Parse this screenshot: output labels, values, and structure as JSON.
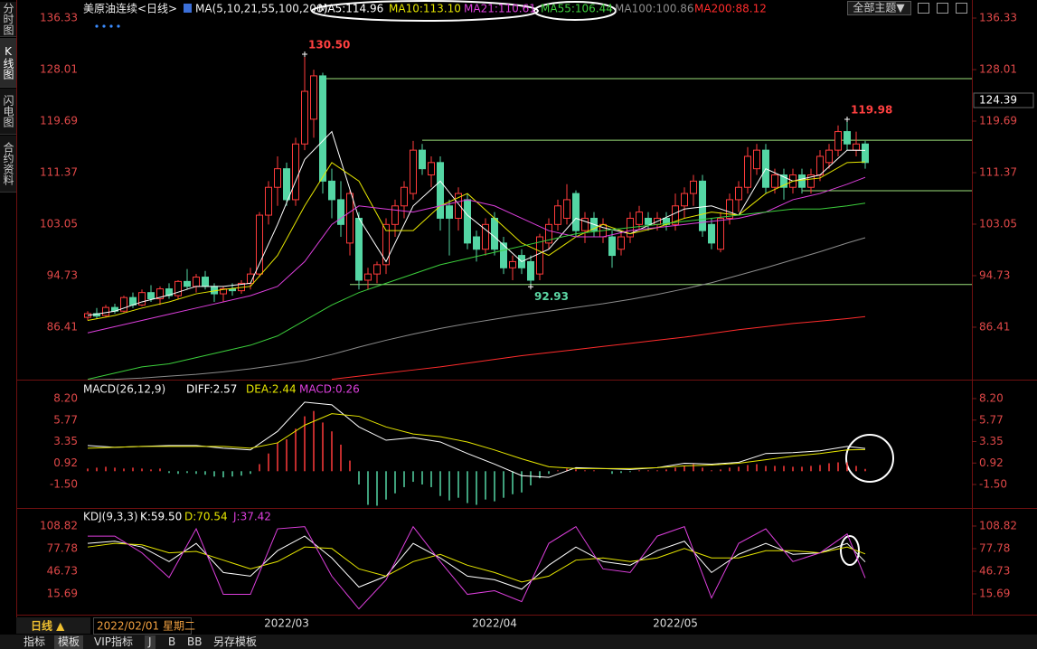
{
  "sidebar": [
    "分时图",
    "K线图",
    "闪电图",
    "合约资料"
  ],
  "toolbar": {
    "theme": "全部主题▼"
  },
  "line_x": [
    0,
    3,
    6,
    9,
    12,
    15,
    18,
    21,
    24,
    27,
    30,
    33,
    36,
    39,
    42,
    45,
    48,
    51,
    54,
    57,
    60,
    63,
    66,
    69,
    72,
    75,
    78,
    81,
    84,
    86
  ],
  "chart_data": [
    {
      "type": "candlestick",
      "title": "美原油连续<日线>",
      "indicator": "MA(5,10,21,55,100,200)",
      "up_color": "#ff3b3b",
      "down_color": "#54d6a4",
      "ylim": [
        77.94,
        136.33
      ],
      "yticks": [
        136.33,
        128.01,
        119.69,
        111.37,
        103.05,
        94.73,
        86.41
      ],
      "candles": [
        [
          88,
          89,
          87.5,
          88.6
        ],
        [
          88.6,
          89.5,
          87.8,
          88.2
        ],
        [
          88.3,
          90,
          88,
          89.6
        ],
        [
          89.6,
          90.2,
          88.6,
          89
        ],
        [
          89,
          91.5,
          88.8,
          91.2
        ],
        [
          91.2,
          92,
          89.5,
          90
        ],
        [
          90,
          92.5,
          89.8,
          92
        ],
        [
          92,
          93.2,
          90.5,
          91
        ],
        [
          91,
          93,
          90,
          92.6
        ],
        [
          92.6,
          93.5,
          91,
          91.5
        ],
        [
          91.5,
          94,
          91,
          93.8
        ],
        [
          93.8,
          95.8,
          92.5,
          93
        ],
        [
          93,
          95,
          92,
          94.5
        ],
        [
          94.5,
          95.5,
          92.5,
          93
        ],
        [
          93,
          93.5,
          90.5,
          91.8
        ],
        [
          91.8,
          93,
          90.5,
          92.6
        ],
        [
          92.6,
          93.5,
          91.5,
          92.3
        ],
        [
          92.3,
          94,
          91.8,
          93.5
        ],
        [
          93.5,
          96,
          92.5,
          95
        ],
        [
          95,
          105,
          94.5,
          104.5
        ],
        [
          104.5,
          110,
          103,
          109
        ],
        [
          109,
          114,
          106,
          112
        ],
        [
          112,
          113,
          106,
          107
        ],
        [
          107,
          117,
          106,
          116
        ],
        [
          116,
          130.5,
          115,
          124.5
        ],
        [
          120,
          128,
          117,
          127
        ],
        [
          127,
          127.5,
          108,
          110
        ],
        [
          110,
          112,
          104,
          107
        ],
        [
          107,
          110,
          101,
          103
        ],
        [
          100,
          108.5,
          98,
          108
        ],
        [
          104,
          105,
          92.5,
          94
        ],
        [
          94,
          96,
          92.5,
          95
        ],
        [
          95,
          97,
          93.5,
          96.5
        ],
        [
          96.5,
          104,
          95,
          103
        ],
        [
          103,
          107,
          101,
          106
        ],
        [
          106,
          110,
          104,
          109
        ],
        [
          108,
          116.5,
          107,
          115
        ],
        [
          115,
          116,
          111,
          112
        ],
        [
          111,
          114,
          109,
          113
        ],
        [
          113,
          114,
          102,
          104
        ],
        [
          106,
          107,
          98,
          104
        ],
        [
          104,
          109,
          102,
          108
        ],
        [
          107,
          108,
          99,
          100
        ],
        [
          101,
          102,
          97,
          99
        ],
        [
          99,
          104,
          98,
          103
        ],
        [
          104,
          105,
          98,
          99
        ],
        [
          100,
          101,
          95,
          96
        ],
        [
          96,
          98,
          94,
          97
        ],
        [
          98,
          99,
          95,
          96
        ],
        [
          97,
          98,
          92.93,
          94
        ],
        [
          95,
          101.5,
          94,
          101
        ],
        [
          100,
          104,
          99,
          103
        ],
        [
          103,
          107,
          102,
          106
        ],
        [
          104,
          109.5,
          103,
          107
        ],
        [
          108,
          108.5,
          101,
          102
        ],
        [
          102,
          105,
          100,
          104
        ],
        [
          104,
          105,
          101,
          102
        ],
        [
          101,
          104,
          100,
          103
        ],
        [
          101,
          102,
          96,
          98
        ],
        [
          99,
          102,
          98,
          101
        ],
        [
          101,
          105,
          100,
          104
        ],
        [
          103,
          106,
          102,
          105
        ],
        [
          104,
          105,
          102,
          103
        ],
        [
          103,
          105,
          102,
          104
        ],
        [
          104,
          105,
          102,
          103
        ],
        [
          103,
          108,
          102,
          106
        ],
        [
          106,
          109,
          104,
          108
        ],
        [
          108,
          111,
          106,
          110
        ],
        [
          110,
          111,
          101,
          102
        ],
        [
          103,
          104,
          99,
          100
        ],
        [
          99,
          105,
          98.5,
          104
        ],
        [
          104,
          108,
          103,
          107
        ],
        [
          107,
          110,
          105,
          109
        ],
        [
          109,
          115.5,
          108,
          114
        ],
        [
          112,
          116,
          111,
          115
        ],
        [
          115,
          116,
          108,
          109
        ],
        [
          109,
          112,
          108,
          111
        ],
        [
          111,
          112,
          107,
          109
        ],
        [
          109,
          112,
          108,
          111
        ],
        [
          111,
          112,
          108,
          109
        ],
        [
          109,
          112,
          108,
          111
        ],
        [
          111,
          115,
          110,
          114
        ],
        [
          113,
          116,
          112,
          115
        ],
        [
          115,
          119,
          114,
          118
        ],
        [
          118,
          119.98,
          115,
          116
        ],
        [
          115,
          118,
          114,
          116
        ],
        [
          116,
          116.5,
          112,
          113
        ]
      ],
      "series": [
        {
          "name": "MA5:114.96",
          "color": "#ffffff",
          "values": [
            88.3,
            89,
            90.5,
            91.6,
            93,
            93,
            93.5,
            103,
            113.5,
            118,
            104,
            97,
            106,
            110,
            104.5,
            101,
            97,
            99,
            104,
            102.5,
            101.5,
            103.5,
            105.5,
            106,
            104.5,
            112,
            110,
            111,
            115,
            114.96
          ]
        },
        {
          "name": "MA10:113.10",
          "color": "#e6e600",
          "values": [
            87.5,
            88.3,
            89.5,
            90.5,
            91.8,
            92.5,
            93,
            98,
            106,
            113,
            110,
            102,
            102,
            106,
            108,
            104,
            100,
            98,
            101,
            103,
            101.5,
            102.5,
            104,
            105,
            104.5,
            108,
            110,
            110.5,
            113,
            113.1
          ]
        },
        {
          "name": "MA21:110.61",
          "color": "#dd3fdd",
          "values": [
            85.5,
            86.5,
            87.5,
            88.5,
            89.5,
            90.5,
            91.5,
            93,
            97,
            103,
            106,
            105.5,
            105,
            106,
            107,
            106,
            104,
            102,
            101,
            101,
            102,
            102.5,
            103,
            103.5,
            104,
            105,
            107,
            108,
            109.5,
            110.61
          ]
        },
        {
          "name": "MA55:106.44",
          "color": "#3ccf3c",
          "values": [
            78,
            79,
            80,
            80.5,
            81.5,
            82.5,
            83.5,
            85,
            87.5,
            90,
            92,
            93.5,
            95,
            96.5,
            97.5,
            98.5,
            99.5,
            100.5,
            101.5,
            102,
            102.5,
            103,
            103.5,
            104,
            104.5,
            105,
            105.5,
            105.5,
            106,
            106.44
          ]
        },
        {
          "name": "MA100:100.86",
          "color": "#8c8c8c",
          "values": [
            77.9,
            78,
            78.2,
            78.5,
            78.8,
            79.2,
            79.7,
            80.3,
            81,
            82,
            83.2,
            84.3,
            85.3,
            86.2,
            87,
            87.7,
            88.4,
            89,
            89.6,
            90.2,
            90.9,
            91.7,
            92.6,
            93.6,
            94.8,
            96,
            97.3,
            98.6,
            100,
            100.86
          ]
        },
        {
          "name": "MA200:88.12",
          "color": "#ff2c2c",
          "values": [
            null,
            null,
            null,
            null,
            null,
            null,
            null,
            null,
            null,
            78,
            78.5,
            79,
            79.5,
            80,
            80.6,
            81.2,
            81.8,
            82.3,
            82.8,
            83.3,
            83.8,
            84.3,
            84.8,
            85.4,
            86,
            86.5,
            87,
            87.4,
            87.8,
            88.12
          ]
        }
      ],
      "hlines": [
        {
          "value": 126.55,
          "start": 26
        },
        {
          "value": 116.6,
          "start": 37
        },
        {
          "value": 108.45,
          "start": 79
        },
        {
          "value": 93.3,
          "start": 29
        }
      ],
      "annotations": [
        {
          "index": 24,
          "value": 130.5,
          "value_label": "130.50",
          "position": "above",
          "color": "#ff4040"
        },
        {
          "index": 84,
          "value": 119.98,
          "value_label": "119.98",
          "position": "above",
          "color": "#ff4040"
        },
        {
          "index": 49,
          "value": 92.93,
          "value_label": "92.93",
          "position": "below",
          "color": "#5cd6a4"
        }
      ],
      "current_price": "124.39"
    },
    {
      "type": "macd",
      "title": "MACD(26,12,9)",
      "ylim": [
        -3.95,
        9.83
      ],
      "yticks": [
        {
          "value": 8.2,
          "label": "8.20"
        },
        5.77,
        3.35,
        0.92,
        {
          "value": -1.5,
          "label": "-1.50"
        }
      ],
      "histogram": {
        "name": "MACD:0.26",
        "color": "#dd3fdd",
        "up_color": "#ff3b3b",
        "down_color": "#54d6a4",
        "values": [
          0.3,
          0.4,
          0.5,
          0.4,
          0.3,
          0.4,
          0.3,
          0.2,
          0.3,
          -0.2,
          -0.3,
          -0.2,
          -0.3,
          -0.4,
          -0.6,
          -0.7,
          -0.6,
          -0.5,
          -0.3,
          0.8,
          2.0,
          3.2,
          3.6,
          4.8,
          6.2,
          6.8,
          5.5,
          4.5,
          3.0,
          1.2,
          -1.5,
          -3.8,
          -3.9,
          -3.2,
          -2.5,
          -1.8,
          -1.2,
          -1.5,
          -1.8,
          -2.8,
          -3.3,
          -3.0,
          -3.6,
          -3.8,
          -3.2,
          -3.4,
          -3.0,
          -2.6,
          -2.4,
          -1.6,
          -0.8,
          -0.3,
          0.1,
          0.3,
          0.2,
          0.1,
          0.1,
          0.0,
          -0.3,
          -0.2,
          -0.1,
          0.1,
          0.1,
          0.1,
          0.2,
          0.4,
          0.6,
          0.8,
          0.4,
          0.1,
          0.2,
          0.4,
          0.5,
          0.7,
          0.8,
          0.6,
          0.6,
          0.6,
          0.5,
          0.5,
          0.6,
          0.7,
          0.9,
          1.0,
          1.0,
          0.6,
          0.26
        ]
      },
      "series": [
        {
          "name": "DIFF:2.57",
          "color": "#ffffff",
          "values": [
            2.9,
            2.7,
            2.8,
            2.9,
            2.9,
            2.6,
            2.4,
            4.5,
            7.8,
            7.5,
            5,
            3.5,
            3.8,
            3.3,
            2,
            0.8,
            -0.5,
            -0.7,
            0.4,
            0.3,
            0.2,
            0.4,
            0.9,
            0.8,
            1.0,
            2.0,
            2.1,
            2.3,
            2.8,
            2.57
          ]
        },
        {
          "name": "DEA:2.44",
          "color": "#e6e600",
          "values": [
            2.6,
            2.7,
            2.8,
            2.8,
            2.8,
            2.8,
            2.6,
            3.2,
            5.2,
            6.5,
            6.2,
            5.0,
            4.2,
            3.9,
            3.3,
            2.4,
            1.4,
            0.5,
            0.3,
            0.3,
            0.3,
            0.4,
            0.6,
            0.7,
            0.9,
            1.3,
            1.7,
            2.0,
            2.4,
            2.44
          ]
        }
      ]
    },
    {
      "type": "kdj",
      "title": "KDJ(9,3,3)",
      "ylim": [
        -12.9,
        129.9
      ],
      "yticks": [
        108.82,
        77.78,
        46.73,
        15.69
      ],
      "series": [
        {
          "name": "K:59.50",
          "color": "#ffffff",
          "values": [
            85,
            88,
            80,
            60,
            85,
            45,
            40,
            75,
            95,
            65,
            25,
            40,
            85,
            65,
            40,
            35,
            22,
            55,
            80,
            60,
            55,
            75,
            88,
            45,
            70,
            85,
            70,
            72,
            85,
            59.5
          ]
        },
        {
          "name": "D:70.54",
          "color": "#e6e600",
          "values": [
            80,
            85,
            83,
            72,
            74,
            62,
            50,
            60,
            80,
            78,
            50,
            40,
            60,
            70,
            55,
            45,
            32,
            40,
            62,
            65,
            60,
            65,
            78,
            65,
            65,
            75,
            75,
            72,
            80,
            70.54
          ]
        },
        {
          "name": "J:37.42",
          "color": "#dd3fdd",
          "values": [
            95,
            95,
            72,
            38,
            105,
            15,
            15,
            105,
            108,
            40,
            -5,
            35,
            108,
            60,
            15,
            20,
            5,
            85,
            108,
            50,
            45,
            95,
            108,
            10,
            85,
            105,
            60,
            72,
            98,
            37.42
          ]
        }
      ]
    }
  ],
  "x_axis": {
    "period": "日线 ▲",
    "cursor_date": "2022/02/01 星期二",
    "labels": [
      {
        "label": "2022/03",
        "index": 22
      },
      {
        "label": "2022/04",
        "index": 45
      },
      {
        "label": "2022/05",
        "index": 65
      }
    ]
  },
  "tabs": [
    "指标",
    "模板",
    "VIP指标",
    "J",
    "B",
    "BB",
    "另存模板"
  ]
}
